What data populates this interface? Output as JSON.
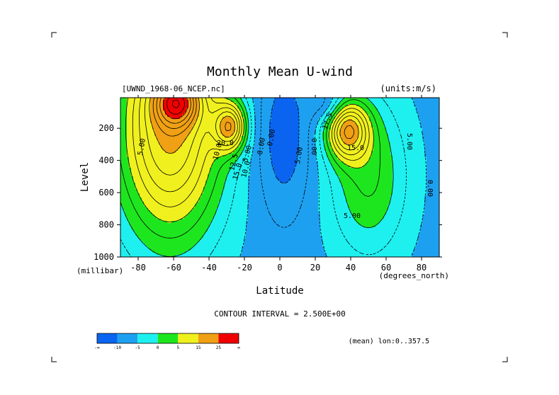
{
  "chart_data": {
    "type": "heatmap",
    "title": "Monthly Mean U-wind",
    "dataset_label": "[UWND_1968-06_NCEP.nc]",
    "units_label": "(units:m/s)",
    "xlabel": "Latitude",
    "ylabel": "Level",
    "x_units": "(degrees_north)",
    "y_units": "(millibar)",
    "xlim": [
      -90,
      90
    ],
    "ylim": [
      1000,
      10
    ],
    "x_ticks": [
      "-80",
      "-60",
      "-40",
      "-20",
      "0",
      "20",
      "40",
      "60",
      "80"
    ],
    "y_ticks": [
      "200",
      "400",
      "600",
      "800",
      "1000"
    ],
    "contour_interval_text": "CONTOUR INTERVAL = 2.500E+00",
    "footer_text": "(mean) lon:0..357.5",
    "contour_labels": [
      "5.00",
      "0.00",
      "10.0",
      "12.5",
      "15.0",
      "20.0",
      "5.00",
      "0.00",
      "0.00",
      "5.00",
      "17.5",
      "15.0",
      "5.00",
      "0.00",
      "5.00",
      "0.00",
      "10.0"
    ],
    "colorbar": {
      "levels": [
        "-∞",
        "-10",
        "-5",
        "0",
        "5",
        "15",
        "25",
        "∞"
      ],
      "colors": [
        "#0a64f0",
        "#1ea0f0",
        "#1ef0f0",
        "#1ee61e",
        "#f0f01e",
        "#f0a014",
        "#f00000"
      ]
    },
    "contour_levels": [
      -10,
      -5,
      0,
      5,
      15,
      25
    ]
  }
}
